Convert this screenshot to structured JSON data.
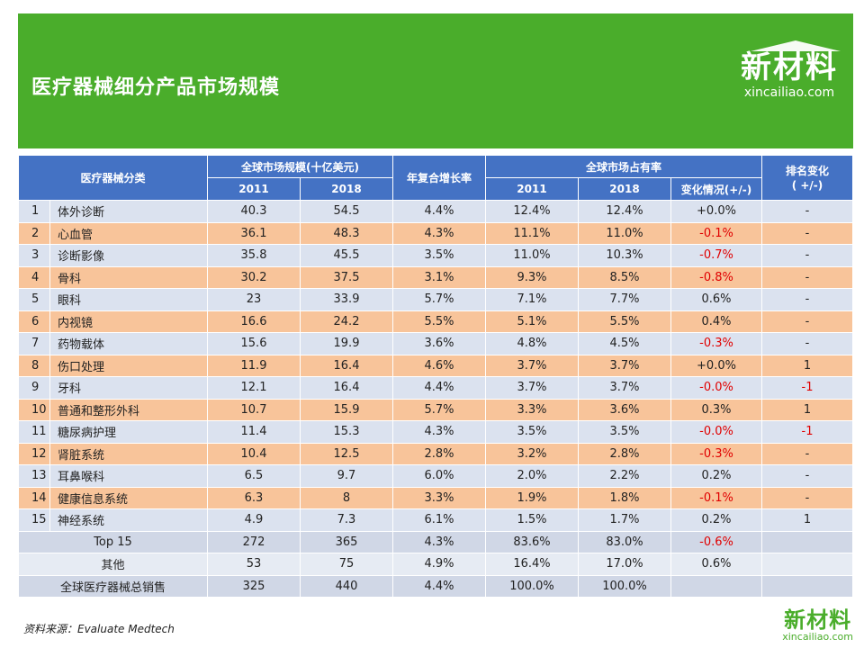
{
  "header": {
    "title": "医疗器械细分产品市场规模",
    "logo_cn": "新材料",
    "logo_en": "xincailiao.com"
  },
  "table": {
    "col_category": "医疗器械分类",
    "col_market_size": "全球市场规模(十亿美元)",
    "col_cagr": "年复合增长率",
    "col_share": "全球市场占有率",
    "col_rank": "排名变化\n( +/-)",
    "year_2011": "2011",
    "year_2018": "2018",
    "col_change": "变化情况(+/-)",
    "rows": [
      {
        "no": "1",
        "name": "体外诊断",
        "s2011": "40.3",
        "s2018": "54.5",
        "cagr": "4.4%",
        "sh2011": "12.4%",
        "sh2018": "12.4%",
        "chg": "+0.0%",
        "neg": false,
        "rank": "-",
        "rank_neg": false
      },
      {
        "no": "2",
        "name": "心血管",
        "s2011": "36.1",
        "s2018": "48.3",
        "cagr": "4.3%",
        "sh2011": "11.1%",
        "sh2018": "11.0%",
        "chg": "-0.1%",
        "neg": true,
        "rank": "-",
        "rank_neg": false
      },
      {
        "no": "3",
        "name": "诊断影像",
        "s2011": "35.8",
        "s2018": "45.5",
        "cagr": "3.5%",
        "sh2011": "11.0%",
        "sh2018": "10.3%",
        "chg": "-0.7%",
        "neg": true,
        "rank": "-",
        "rank_neg": false
      },
      {
        "no": "4",
        "name": "骨科",
        "s2011": "30.2",
        "s2018": "37.5",
        "cagr": "3.1%",
        "sh2011": "9.3%",
        "sh2018": "8.5%",
        "chg": "-0.8%",
        "neg": true,
        "rank": "-",
        "rank_neg": false
      },
      {
        "no": "5",
        "name": "眼科",
        "s2011": "23",
        "s2018": "33.9",
        "cagr": "5.7%",
        "sh2011": "7.1%",
        "sh2018": "7.7%",
        "chg": "0.6%",
        "neg": false,
        "rank": "-",
        "rank_neg": false
      },
      {
        "no": "6",
        "name": "内视镜",
        "s2011": "16.6",
        "s2018": "24.2",
        "cagr": "5.5%",
        "sh2011": "5.1%",
        "sh2018": "5.5%",
        "chg": "0.4%",
        "neg": false,
        "rank": "-",
        "rank_neg": false
      },
      {
        "no": "7",
        "name": "药物载体",
        "s2011": "15.6",
        "s2018": "19.9",
        "cagr": "3.6%",
        "sh2011": "4.8%",
        "sh2018": "4.5%",
        "chg": "-0.3%",
        "neg": true,
        "rank": "-",
        "rank_neg": false
      },
      {
        "no": "8",
        "name": "伤口处理",
        "s2011": "11.9",
        "s2018": "16.4",
        "cagr": "4.6%",
        "sh2011": "3.7%",
        "sh2018": "3.7%",
        "chg": "+0.0%",
        "neg": false,
        "rank": "1",
        "rank_neg": false
      },
      {
        "no": "9",
        "name": "牙科",
        "s2011": "12.1",
        "s2018": "16.4",
        "cagr": "4.4%",
        "sh2011": "3.7%",
        "sh2018": "3.7%",
        "chg": "-0.0%",
        "neg": true,
        "rank": "-1",
        "rank_neg": true
      },
      {
        "no": "10",
        "name": "普通和整形外科",
        "s2011": "10.7",
        "s2018": "15.9",
        "cagr": "5.7%",
        "sh2011": "3.3%",
        "sh2018": "3.6%",
        "chg": "0.3%",
        "neg": false,
        "rank": "1",
        "rank_neg": false
      },
      {
        "no": "11",
        "name": "糖尿病护理",
        "s2011": "11.4",
        "s2018": "15.3",
        "cagr": "4.3%",
        "sh2011": "3.5%",
        "sh2018": "3.5%",
        "chg": "-0.0%",
        "neg": true,
        "rank": "-1",
        "rank_neg": true
      },
      {
        "no": "12",
        "name": "肾脏系统",
        "s2011": "10.4",
        "s2018": "12.5",
        "cagr": "2.8%",
        "sh2011": "3.2%",
        "sh2018": "2.8%",
        "chg": "-0.3%",
        "neg": true,
        "rank": "-",
        "rank_neg": false
      },
      {
        "no": "13",
        "name": "耳鼻喉科",
        "s2011": "6.5",
        "s2018": "9.7",
        "cagr": "6.0%",
        "sh2011": "2.0%",
        "sh2018": "2.2%",
        "chg": "0.2%",
        "neg": false,
        "rank": "-",
        "rank_neg": false
      },
      {
        "no": "14",
        "name": "健康信息系统",
        "s2011": "6.3",
        "s2018": "8",
        "cagr": "3.3%",
        "sh2011": "1.9%",
        "sh2018": "1.8%",
        "chg": "-0.1%",
        "neg": true,
        "rank": "-",
        "rank_neg": false
      },
      {
        "no": "15",
        "name": "神经系统",
        "s2011": "4.9",
        "s2018": "7.3",
        "cagr": "6.1%",
        "sh2011": "1.5%",
        "sh2018": "1.7%",
        "chg": "0.2%",
        "neg": false,
        "rank": "1",
        "rank_neg": false
      }
    ],
    "summary": [
      {
        "name": "Top 15",
        "s2011": "272",
        "s2018": "365",
        "cagr": "4.3%",
        "sh2011": "83.6%",
        "sh2018": "83.0%",
        "chg": "-0.6%",
        "neg": true
      },
      {
        "name": "其他",
        "s2011": "53",
        "s2018": "75",
        "cagr": "4.9%",
        "sh2011": "16.4%",
        "sh2018": "17.0%",
        "chg": "0.6%",
        "neg": false
      },
      {
        "name": "全球医疗器械总销售",
        "s2011": "325",
        "s2018": "440",
        "cagr": "4.4%",
        "sh2011": "100.0%",
        "sh2018": "100.0%",
        "chg": "",
        "neg": false
      }
    ]
  },
  "footer": {
    "source": "资料来源：Evaluate  Medtech",
    "logo_cn": "新材料",
    "logo_en": "xincailiao.com"
  },
  "colors": {
    "banner_green": "#4aad2b",
    "header_blue": "#4472c4",
    "row_light": "#dbe2ef",
    "row_orange": "#f8c49a",
    "negative_red": "#e00000"
  }
}
